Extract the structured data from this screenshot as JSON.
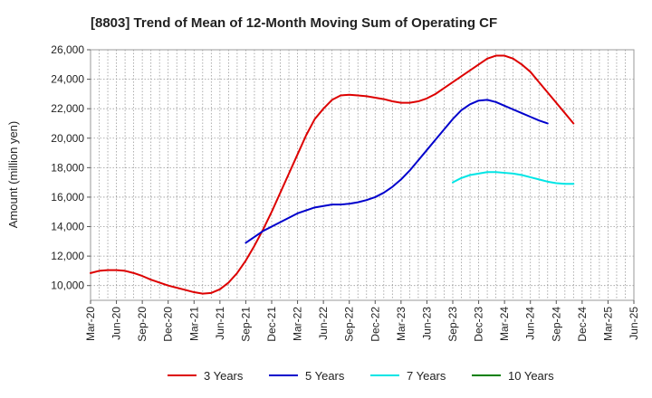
{
  "chart_data": {
    "type": "line",
    "title": "[8803]  Trend of Mean of 12-Month Moving Sum of Operating CF",
    "xlabel": "",
    "ylabel": "Amount (million yen)",
    "ylim": [
      9000,
      26000
    ],
    "yticks": [
      10000,
      12000,
      14000,
      16000,
      18000,
      20000,
      22000,
      24000,
      26000
    ],
    "ytick_labels": [
      "10,000",
      "12,000",
      "14,000",
      "16,000",
      "18,000",
      "20,000",
      "22,000",
      "24,000",
      "26,000"
    ],
    "x_tick_labels": [
      "Mar-20",
      "Jun-20",
      "Sep-20",
      "Dec-20",
      "Mar-21",
      "Jun-21",
      "Sep-21",
      "Dec-21",
      "Mar-22",
      "Jun-22",
      "Sep-22",
      "Dec-22",
      "Mar-23",
      "Jun-23",
      "Sep-23",
      "Dec-23",
      "Mar-24",
      "Jun-24",
      "Sep-24",
      "Dec-24",
      "Mar-25",
      "Jun-25"
    ],
    "grid": true,
    "series": [
      {
        "name": "3 Years",
        "color": "#dd0000",
        "start_index": 0,
        "values": [
          10850,
          11000,
          11050,
          11050,
          11000,
          10850,
          10650,
          10400,
          10200,
          10000,
          9850,
          9700,
          9550,
          9450,
          9500,
          9750,
          10200,
          10850,
          11700,
          12700,
          13800,
          15000,
          16300,
          17600,
          18900,
          20200,
          21300,
          22000,
          22600,
          22900,
          22950,
          22900,
          22850,
          22750,
          22650,
          22500,
          22400,
          22400,
          22500,
          22700,
          23000,
          23400,
          23800,
          24200,
          24600,
          25000,
          25400,
          25600,
          25600,
          25400,
          25000,
          24500,
          23800,
          23100,
          22400,
          21700,
          21000
        ]
      },
      {
        "name": "5 Years",
        "color": "#0000cc",
        "start_index": 18,
        "values": [
          12900,
          13300,
          13700,
          14000,
          14300,
          14600,
          14900,
          15100,
          15300,
          15400,
          15500,
          15500,
          15550,
          15650,
          15800,
          16000,
          16300,
          16700,
          17200,
          17800,
          18500,
          19200,
          19900,
          20600,
          21300,
          21900,
          22300,
          22550,
          22600,
          22450,
          22200,
          21950,
          21700,
          21450,
          21200,
          21000
        ]
      },
      {
        "name": "7 Years",
        "color": "#00e5e5",
        "start_index": 42,
        "values": [
          17000,
          17300,
          17500,
          17600,
          17700,
          17700,
          17650,
          17600,
          17500,
          17350,
          17200,
          17050,
          16950,
          16900,
          16900
        ]
      },
      {
        "name": "10 Years",
        "color": "#008000",
        "start_index": 0,
        "values": []
      }
    ]
  }
}
